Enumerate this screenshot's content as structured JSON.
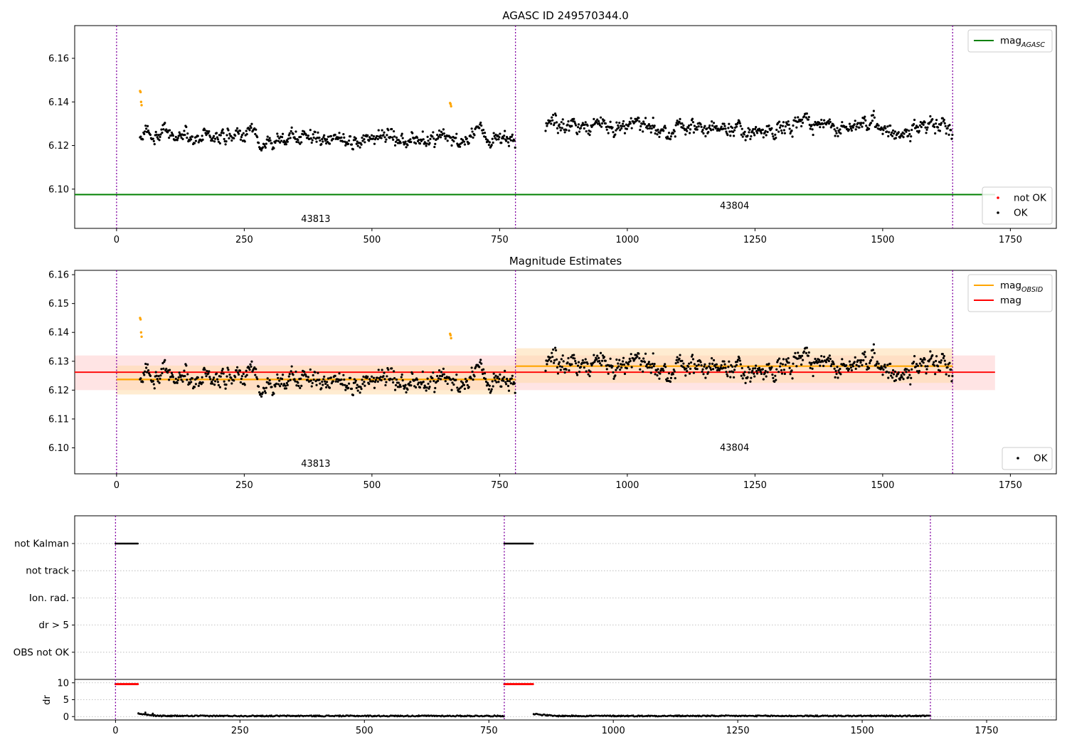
{
  "chart_data": [
    {
      "type": "scatter",
      "title": "AGASC ID 249570344.0",
      "xlim": [
        -82,
        1840
      ],
      "ylim": [
        6.082,
        6.175
      ],
      "x_ticks": [
        0,
        250,
        500,
        750,
        1000,
        1250,
        1500,
        1750
      ],
      "y_ticks": [
        6.1,
        6.12,
        6.14,
        6.16
      ],
      "y_tick_labels": [
        "6.10",
        "6.12",
        "6.14",
        "6.16"
      ],
      "obs_boundaries": [
        0,
        781,
        1637
      ],
      "obs_labels": [
        {
          "text": "43813",
          "x": 390,
          "y": 6.085
        },
        {
          "text": "43804",
          "x": 1210,
          "y": 6.091
        }
      ],
      "segments": [
        {
          "obsid": "43813",
          "x_start": 46,
          "x_end": 781,
          "base": 6.1235
        },
        {
          "obsid": "43804",
          "x_start": 840,
          "x_end": 1637,
          "base": 6.1285
        }
      ],
      "highlight_points": [
        {
          "x": 46,
          "y": 6.145
        },
        {
          "x": 47,
          "y": 6.1445
        },
        {
          "x": 48,
          "y": 6.14
        },
        {
          "x": 49,
          "y": 6.1385
        },
        {
          "x": 653,
          "y": 6.1395
        },
        {
          "x": 654,
          "y": 6.139
        },
        {
          "x": 655,
          "y": 6.138
        }
      ],
      "lines": [
        {
          "name": "mag_AGASC",
          "y": 6.0975,
          "x_range": [
            -82,
            1720
          ],
          "color": "#008000"
        }
      ],
      "legends": [
        {
          "position": "upper-right",
          "entries": [
            {
              "label": "mag",
              "sub": "AGASC",
              "color": "#008000",
              "kind": "line"
            }
          ]
        },
        {
          "position": "lower-right",
          "entries": [
            {
              "label": "not OK",
              "color": "#ff0000",
              "kind": "dot"
            },
            {
              "label": "OK",
              "color": "#000000",
              "kind": "dot"
            }
          ]
        }
      ]
    },
    {
      "type": "scatter",
      "title": "Magnitude Estimates",
      "xlim": [
        -82,
        1840
      ],
      "ylim": [
        6.091,
        6.1615
      ],
      "x_ticks": [
        0,
        250,
        500,
        750,
        1000,
        1250,
        1500,
        1750
      ],
      "y_ticks": [
        6.1,
        6.11,
        6.12,
        6.13,
        6.14,
        6.15,
        6.16
      ],
      "y_tick_labels": [
        "6.10",
        "6.11",
        "6.12",
        "6.13",
        "6.14",
        "6.15",
        "6.16"
      ],
      "obs_boundaries": [
        0,
        781,
        1637
      ],
      "obs_labels": [
        {
          "text": "43813",
          "x": 390,
          "y": 6.0935
        },
        {
          "text": "43804",
          "x": 1210,
          "y": 6.099
        }
      ],
      "bands": [
        {
          "x_range": [
            -82,
            1720
          ],
          "y_range": [
            6.12,
            6.132
          ],
          "color": "#ffb3b3",
          "opacity": 0.35
        },
        {
          "x_range": [
            0,
            781
          ],
          "y_range": [
            6.1185,
            6.1285
          ],
          "color": "#ffd9a3",
          "opacity": 0.5
        },
        {
          "x_range": [
            781,
            1637
          ],
          "y_range": [
            6.1225,
            6.1345
          ],
          "color": "#ffd9a3",
          "opacity": 0.5
        }
      ],
      "lines": [
        {
          "name": "mag_OBSID",
          "segments": [
            [
              0,
              781,
              6.1237
            ],
            [
              781,
              1637,
              6.1283
            ]
          ],
          "color": "#ffa500"
        },
        {
          "name": "mag",
          "y": 6.1262,
          "x_range": [
            -82,
            1720
          ],
          "color": "#ff0000"
        }
      ],
      "legends": [
        {
          "position": "upper-right",
          "entries": [
            {
              "label": "mag",
              "sub": "OBSID",
              "color": "#ffa500",
              "kind": "line"
            },
            {
              "label": "mag",
              "color": "#ff0000",
              "kind": "line"
            }
          ]
        },
        {
          "position": "lower-right",
          "entries": [
            {
              "label": "OK",
              "color": "#000000",
              "kind": "dot"
            }
          ]
        }
      ]
    },
    {
      "type": "scatter",
      "title": "",
      "xlim": [
        -82,
        1890
      ],
      "x_ticks": [
        0,
        250,
        500,
        750,
        1000,
        1250,
        1500,
        1750
      ],
      "obs_boundaries": [
        0,
        781,
        1637
      ],
      "flag_rows": [
        "not Kalman",
        "not track",
        "Ion. rad.",
        "dr > 5",
        "OBS not OK"
      ],
      "flag_runs": [
        {
          "row": "not Kalman",
          "x_range": [
            0,
            46
          ]
        },
        {
          "row": "not Kalman",
          "x_range": [
            781,
            840
          ]
        }
      ],
      "dr": {
        "ylabel": "dr",
        "y_ticks": [
          0,
          5,
          10
        ],
        "y_tick_labels": [
          "0",
          "5",
          "10"
        ],
        "ylim": [
          -1,
          11
        ],
        "clip_runs": [
          {
            "x_range": [
              0,
              46
            ],
            "y": 9.6
          },
          {
            "x_range": [
              781,
              840
            ],
            "y": 9.6
          }
        ],
        "early_values": [
          {
            "x": 46,
            "y": 1.0
          },
          {
            "x": 60,
            "y": 1.2
          },
          {
            "x": 75,
            "y": 0.9
          },
          {
            "x": 840,
            "y": 0.7
          }
        ],
        "typical_value": 0.2
      }
    }
  ]
}
